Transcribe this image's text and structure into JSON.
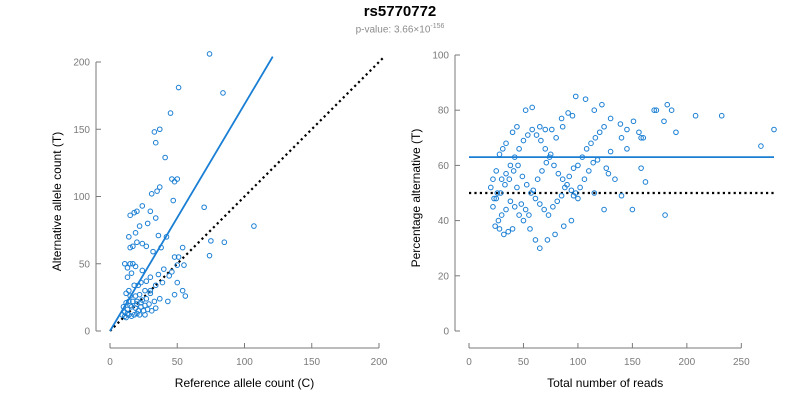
{
  "header": {
    "title": "rs5770772",
    "pvalue_prefix": "p-value: 3.66×10",
    "pvalue_exponent": "-156"
  },
  "colors": {
    "points": "#1a7fd4",
    "fit_line": "#1a7fd4",
    "reference_line": "#000000",
    "axis": "#7a7a7a"
  },
  "chart_data": [
    {
      "type": "scatter",
      "title": "",
      "xlabel": "Reference allele count (C)",
      "ylabel": "Alternative allele count (T)",
      "xlim": [
        0,
        200
      ],
      "ylim": [
        0,
        200
      ],
      "xticks": [
        0,
        50,
        100,
        150,
        200
      ],
      "yticks": [
        0,
        50,
        100,
        150,
        200
      ],
      "grid": false,
      "fit_line": {
        "from": [
          0,
          0
        ],
        "to": [
          121,
          204
        ]
      },
      "reference_line": {
        "from": [
          0,
          0
        ],
        "to": [
          204,
          204
        ],
        "style": "dotted"
      },
      "points": [
        [
          74,
          206
        ],
        [
          84,
          177
        ],
        [
          51,
          181
        ],
        [
          45,
          162
        ],
        [
          37,
          150
        ],
        [
          33,
          148
        ],
        [
          34,
          140
        ],
        [
          41,
          129
        ],
        [
          35,
          104
        ],
        [
          37,
          107
        ],
        [
          31,
          102
        ],
        [
          46,
          113
        ],
        [
          50,
          113
        ],
        [
          48,
          111
        ],
        [
          47,
          97
        ],
        [
          70,
          92
        ],
        [
          24,
          93
        ],
        [
          20,
          89
        ],
        [
          30,
          89
        ],
        [
          15,
          86
        ],
        [
          18,
          88
        ],
        [
          34,
          84
        ],
        [
          28,
          80
        ],
        [
          22,
          78
        ],
        [
          36,
          71
        ],
        [
          42,
          70
        ],
        [
          19,
          73
        ],
        [
          14,
          70
        ],
        [
          20,
          66
        ],
        [
          17,
          63
        ],
        [
          15,
          62
        ],
        [
          24,
          65
        ],
        [
          27,
          63
        ],
        [
          32,
          59
        ],
        [
          38,
          62
        ],
        [
          54,
          62
        ],
        [
          75,
          67
        ],
        [
          85,
          66
        ],
        [
          107,
          78
        ],
        [
          74,
          56
        ],
        [
          48,
          55
        ],
        [
          51,
          55
        ],
        [
          55,
          49
        ],
        [
          50,
          49
        ],
        [
          46,
          44
        ],
        [
          40,
          46
        ],
        [
          36,
          42
        ],
        [
          30,
          40
        ],
        [
          24,
          45
        ],
        [
          19,
          48
        ],
        [
          13,
          47
        ],
        [
          15,
          50
        ],
        [
          17,
          50
        ],
        [
          11,
          50
        ],
        [
          13,
          40
        ],
        [
          16,
          43
        ],
        [
          23,
          36
        ],
        [
          27,
          37
        ],
        [
          21,
          34
        ],
        [
          18,
          34
        ],
        [
          14,
          30
        ],
        [
          12,
          28
        ],
        [
          15,
          26
        ],
        [
          19,
          26
        ],
        [
          22,
          27
        ],
        [
          26,
          30
        ],
        [
          30,
          30
        ],
        [
          34,
          34
        ],
        [
          39,
          36
        ],
        [
          44,
          41
        ],
        [
          50,
          36
        ],
        [
          54,
          30
        ],
        [
          56,
          26
        ],
        [
          48,
          27
        ],
        [
          43,
          22
        ],
        [
          37,
          24
        ],
        [
          33,
          22
        ],
        [
          29,
          20
        ],
        [
          26,
          19
        ],
        [
          23,
          18
        ],
        [
          20,
          20
        ],
        [
          16,
          18
        ],
        [
          13,
          16
        ],
        [
          11,
          14
        ],
        [
          12,
          10
        ],
        [
          14,
          12
        ],
        [
          16,
          11
        ],
        [
          18,
          12
        ],
        [
          20,
          13
        ],
        [
          22,
          12
        ],
        [
          25,
          15
        ],
        [
          28,
          16
        ],
        [
          31,
          15
        ],
        [
          34,
          17
        ],
        [
          14,
          22
        ],
        [
          17,
          22
        ],
        [
          20,
          22
        ],
        [
          24,
          23
        ],
        [
          27,
          24
        ],
        [
          12,
          21
        ],
        [
          10,
          18
        ],
        [
          15,
          19
        ],
        [
          19,
          17
        ],
        [
          23,
          21
        ],
        [
          9,
          12
        ],
        [
          11,
          11
        ],
        [
          13,
          13
        ],
        [
          21,
          15
        ],
        [
          26,
          12
        ],
        [
          30,
          28
        ]
      ]
    },
    {
      "type": "scatter",
      "title": "",
      "xlabel": "Total number of reads",
      "ylabel": "Percentage alternative (T)",
      "xlim": [
        0,
        280
      ],
      "ylim": [
        0,
        100
      ],
      "xticks": [
        0,
        50,
        100,
        150,
        200,
        250
      ],
      "yticks": [
        0,
        20,
        40,
        60,
        80,
        100
      ],
      "grid": false,
      "fit_line": {
        "y": 63,
        "from_x": 0,
        "to_x": 280
      },
      "reference_line": {
        "y": 50,
        "from_x": 0,
        "to_x": 280,
        "style": "dotted"
      },
      "points": [
        [
          280,
          73
        ],
        [
          268,
          67
        ],
        [
          232,
          78
        ],
        [
          208,
          78
        ],
        [
          186,
          80
        ],
        [
          182,
          82
        ],
        [
          172,
          80
        ],
        [
          179,
          76
        ],
        [
          158,
          70
        ],
        [
          156,
          72
        ],
        [
          151,
          76
        ],
        [
          139,
          75
        ],
        [
          145,
          73
        ],
        [
          130,
          77
        ],
        [
          124,
          74
        ],
        [
          122,
          82
        ],
        [
          115,
          80
        ],
        [
          107,
          84
        ],
        [
          98,
          85
        ],
        [
          91,
          79
        ],
        [
          95,
          78
        ],
        [
          85,
          77
        ],
        [
          86,
          74
        ],
        [
          80,
          70
        ],
        [
          76,
          73
        ],
        [
          70,
          73
        ],
        [
          65,
          74
        ],
        [
          58,
          81
        ],
        [
          52,
          80
        ],
        [
          44,
          74
        ],
        [
          40,
          72
        ],
        [
          34,
          68
        ],
        [
          31,
          66
        ],
        [
          28,
          64
        ],
        [
          25,
          58
        ],
        [
          22,
          55
        ],
        [
          20,
          52
        ],
        [
          23,
          48
        ],
        [
          26,
          50
        ],
        [
          30,
          55
        ],
        [
          34,
          57
        ],
        [
          38,
          60
        ],
        [
          42,
          63
        ],
        [
          46,
          66
        ],
        [
          50,
          69
        ],
        [
          54,
          71
        ],
        [
          58,
          73
        ],
        [
          62,
          71
        ],
        [
          66,
          69
        ],
        [
          70,
          66
        ],
        [
          74,
          63
        ],
        [
          78,
          60
        ],
        [
          82,
          57
        ],
        [
          86,
          55
        ],
        [
          90,
          53
        ],
        [
          94,
          51
        ],
        [
          98,
          50
        ],
        [
          102,
          52
        ],
        [
          106,
          55
        ],
        [
          110,
          58
        ],
        [
          114,
          61
        ],
        [
          118,
          62
        ],
        [
          126,
          59
        ],
        [
          128,
          57
        ],
        [
          134,
          55
        ],
        [
          158,
          59
        ],
        [
          162,
          54
        ],
        [
          124,
          44
        ],
        [
          100,
          48
        ],
        [
          96,
          49
        ],
        [
          150,
          44
        ],
        [
          170,
          80
        ],
        [
          94,
          40
        ],
        [
          87,
          38
        ],
        [
          79,
          35
        ],
        [
          72,
          33
        ],
        [
          65,
          30
        ],
        [
          61,
          33
        ],
        [
          56,
          37
        ],
        [
          50,
          40
        ],
        [
          46,
          42
        ],
        [
          42,
          45
        ],
        [
          38,
          47
        ],
        [
          34,
          44
        ],
        [
          30,
          42
        ],
        [
          27,
          40
        ],
        [
          24,
          38
        ],
        [
          22,
          45
        ],
        [
          25,
          48
        ],
        [
          29,
          50
        ],
        [
          33,
          53
        ],
        [
          37,
          55
        ],
        [
          41,
          58
        ],
        [
          45,
          60
        ],
        [
          49,
          56
        ],
        [
          53,
          53
        ],
        [
          57,
          50
        ],
        [
          61,
          48
        ],
        [
          65,
          46
        ],
        [
          69,
          44
        ],
        [
          73,
          42
        ],
        [
          77,
          45
        ],
        [
          81,
          47
        ],
        [
          85,
          49
        ],
        [
          88,
          52
        ],
        [
          92,
          56
        ],
        [
          96,
          59
        ],
        [
          100,
          60
        ],
        [
          104,
          63
        ],
        [
          108,
          66
        ],
        [
          112,
          68
        ],
        [
          116,
          70
        ],
        [
          120,
          72
        ],
        [
          130,
          65
        ],
        [
          140,
          70
        ],
        [
          145,
          66
        ],
        [
          36,
          36
        ],
        [
          40,
          37
        ],
        [
          28,
          37
        ],
        [
          32,
          35
        ],
        [
          44,
          52
        ],
        [
          48,
          46
        ],
        [
          52,
          44
        ],
        [
          55,
          42
        ],
        [
          59,
          51
        ],
        [
          63,
          55
        ],
        [
          67,
          58
        ],
        [
          71,
          61
        ],
        [
          75,
          64
        ],
        [
          180,
          42
        ],
        [
          140,
          49
        ],
        [
          190,
          72
        ],
        [
          160,
          70
        ],
        [
          115,
          50
        ]
      ]
    }
  ]
}
